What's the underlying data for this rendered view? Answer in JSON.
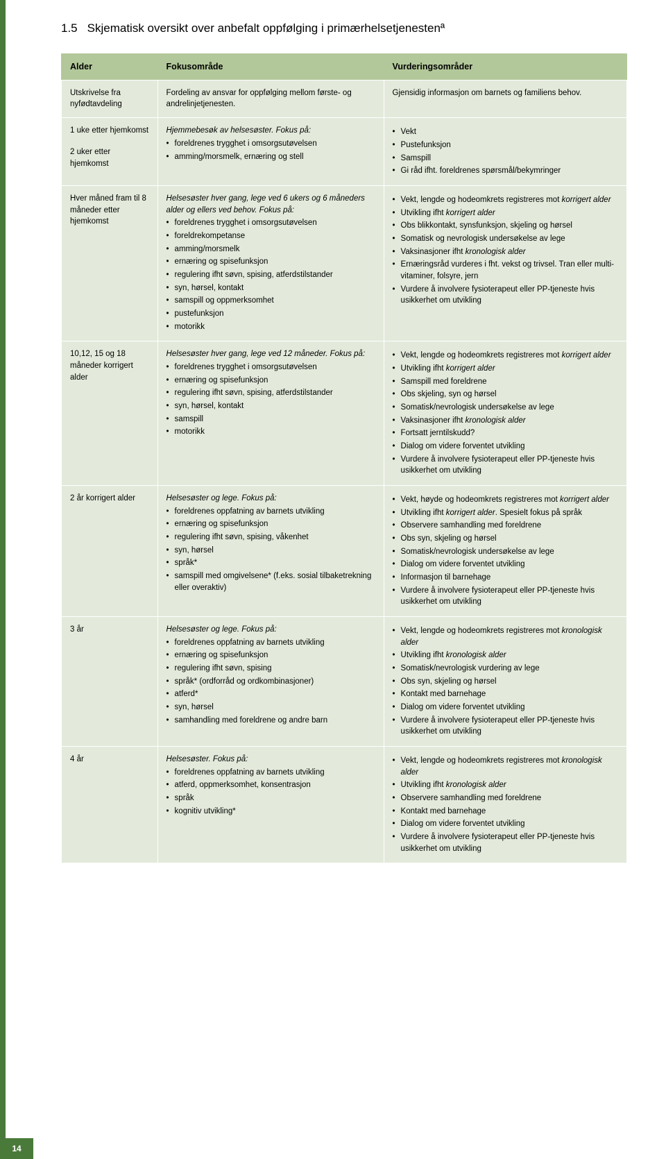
{
  "colors": {
    "header_bg": "#b3c89a",
    "cell_bg": "#e3eadb",
    "accent": "#4a7a3a",
    "text": "#000000",
    "border": "#ffffff"
  },
  "typography": {
    "body_family": "Arial, Helvetica, sans-serif",
    "body_size_pt": 9,
    "title_size_pt": 13
  },
  "page": {
    "section_number": "1.5",
    "title_rest": "Skjematisk oversikt over anbefalt oppfølging i primærhelsetjenestenª",
    "number": "14"
  },
  "table": {
    "headers": [
      "Alder",
      "Fokusområde",
      "Vurderingsområder"
    ],
    "rows": [
      {
        "age": "Utskrivelse fra nyfødtavdeling",
        "focus_intro": "Fordeling av ansvar for oppfølging mellom første- og andrelinjetjenesten.",
        "focus_items": [],
        "assess_intro": "Gjensidig informasjon om barnets og familiens behov.",
        "assess_items": []
      },
      {
        "age": "1 uke etter hjemkomst",
        "age2": "2 uker etter hjemkomst",
        "focus_intro": "<em>Hjemmebesøk av helsesøster. Fokus på:</em>",
        "focus_items": [
          "foreldrenes trygghet i omsorgsutøvelsen",
          "amming/morsmelk, ernæring og stell"
        ],
        "assess_intro": "",
        "assess_items": [
          "Vekt",
          "Pustefunksjon",
          "Samspill",
          "Gi råd ifht. foreldrenes spørsmål/bekymringer"
        ]
      },
      {
        "age": "Hver måned fram til 8 måneder etter hjemkomst",
        "focus_intro": "<em>Helsesøster hver gang, lege ved 6 ukers og 6 måneders alder og ellers ved behov. Fokus på:</em>",
        "focus_items": [
          "foreldrenes trygghet i omsorgsutøvelsen",
          "foreldrekompetanse",
          "amming/morsmelk",
          "ernæring og spisefunksjon",
          "regulering ifht søvn, spising, atferds­tilstander",
          "syn, hørsel, kontakt",
          "samspill og oppmerksomhet",
          "pustefunksjon",
          "motorikk"
        ],
        "assess_intro": "",
        "assess_items": [
          "Vekt, lengde og hodeomkrets registreres mot <em>korrigert alder</em>",
          "Utvikling ifht <em>korrigert alder</em>",
          "Obs blikkontakt, synsfunksjon, skjeling og hørsel",
          "Somatisk og nevrologisk undersøkelse av lege",
          "Vaksinasjoner ifht <em>kronologisk alder</em>",
          "Ernæringsråd vurderes i fht. vekst og trivsel. Tran eller multi-vitaminer, folsyre, jern",
          "Vurdere å involvere fysioterapeut eller PP-tjeneste hvis usikkerhet om utvikling"
        ]
      },
      {
        "age": "10,12, 15 og 18 måneder korrigert alder",
        "focus_intro": "<em>Helsesøster hver gang, lege ved 12 måneder. Fokus på:</em>",
        "focus_items": [
          "foreldrenes trygghet i omsorgsutøvelsen",
          "ernæring og spisefunksjon",
          "regulering ifht søvn, spising, atferdstil­stander",
          "syn, hørsel, kontakt",
          "samspill",
          "motorikk"
        ],
        "assess_intro": "",
        "assess_items": [
          "Vekt, lengde og hodeomkrets registreres mot <em>korrigert alder</em>",
          "Utvikling ifht <em>korrigert alder</em>",
          "Samspill med foreldrene",
          "Obs skjeling, syn og hørsel",
          "Somatisk/nevrologisk undersøkelse av lege",
          "Vaksinasjoner ifht <em>kronologisk alder</em>",
          "Fortsatt jerntilskudd?",
          "Dialog om videre forventet utvikling",
          "Vurdere å involvere fysioterapeut eller PP-tjeneste hvis usikkerhet om utvikling"
        ]
      },
      {
        "age": "2 år korrigert alder",
        "focus_intro": "<em>Helsesøster og lege. Fokus på:</em>",
        "focus_items": [
          "foreldrenes oppfatning av barnets utvikling",
          "ernæring og spisefunksjon",
          "regulering ifht søvn, spising, våkenhet",
          "syn, hørsel",
          "språk*",
          "samspill med omgivelsene* (f.eks. sosial tilbaketrekning eller overaktiv)"
        ],
        "assess_intro": "",
        "assess_items": [
          "Vekt, høyde og hodeomkrets registreres mot <em>korrigert alder</em>",
          "Utvikling ifht <em>korrigert alder</em>. Spesielt fokus på språk",
          "Observere samhandling med foreldrene",
          "Obs syn, skjeling og hørsel",
          "Somatisk/nevrologisk undersøkelse av lege",
          "Dialog om videre forventet utvikling",
          "Informasjon til barnehage",
          "Vurdere å involvere fysioterapeut eller PP-tjeneste hvis usikkerhet om utvikling"
        ]
      },
      {
        "age": "3 år",
        "focus_intro": "<em>Helsesøster og lege. Fokus på:</em>",
        "focus_items": [
          "foreldrenes oppfatning av barnets utvikling",
          "ernæring og spisefunksjon",
          "regulering ifht søvn, spising",
          "språk* (ordforråd og ordkombinasjoner)",
          "atferd*",
          "syn, hørsel",
          "samhandling med foreldrene og andre barn"
        ],
        "assess_intro": "",
        "assess_items": [
          "Vekt, lengde og hodeomkrets registreres mot <em>kronologisk alder</em>",
          "Utvikling ifht <em>kronologisk alder</em>",
          "Somatisk/nevrologisk vurdering av lege",
          "Obs syn, skjeling og hørsel",
          "Kontakt med barnehage",
          "Dialog om videre forventet utvikling",
          "Vurdere å involvere fysioterapeut eller PP-tjeneste hvis usikkerhet om utvikling"
        ]
      },
      {
        "age": "4 år",
        "focus_intro": "<em>Helsesøster. Fokus på:</em>",
        "focus_items": [
          "foreldrenes oppfatning av barnets utvik­ling",
          "atferd, oppmerksomhet, konsentrasjon",
          "språk",
          "kognitiv utvikling*"
        ],
        "assess_intro": "",
        "assess_items": [
          "Vekt, lengde og hodeomkrets registreres mot <em>kronologisk alder</em>",
          "Utvikling ifht <em>kronologisk alder</em>",
          "Observere samhandling med foreldrene",
          "Kontakt med barnehage",
          "Dialog om videre forventet utvikling",
          "Vurdere å involvere fysioterapeut eller PP-tjeneste hvis usikkerhet om utvikling"
        ]
      }
    ]
  }
}
